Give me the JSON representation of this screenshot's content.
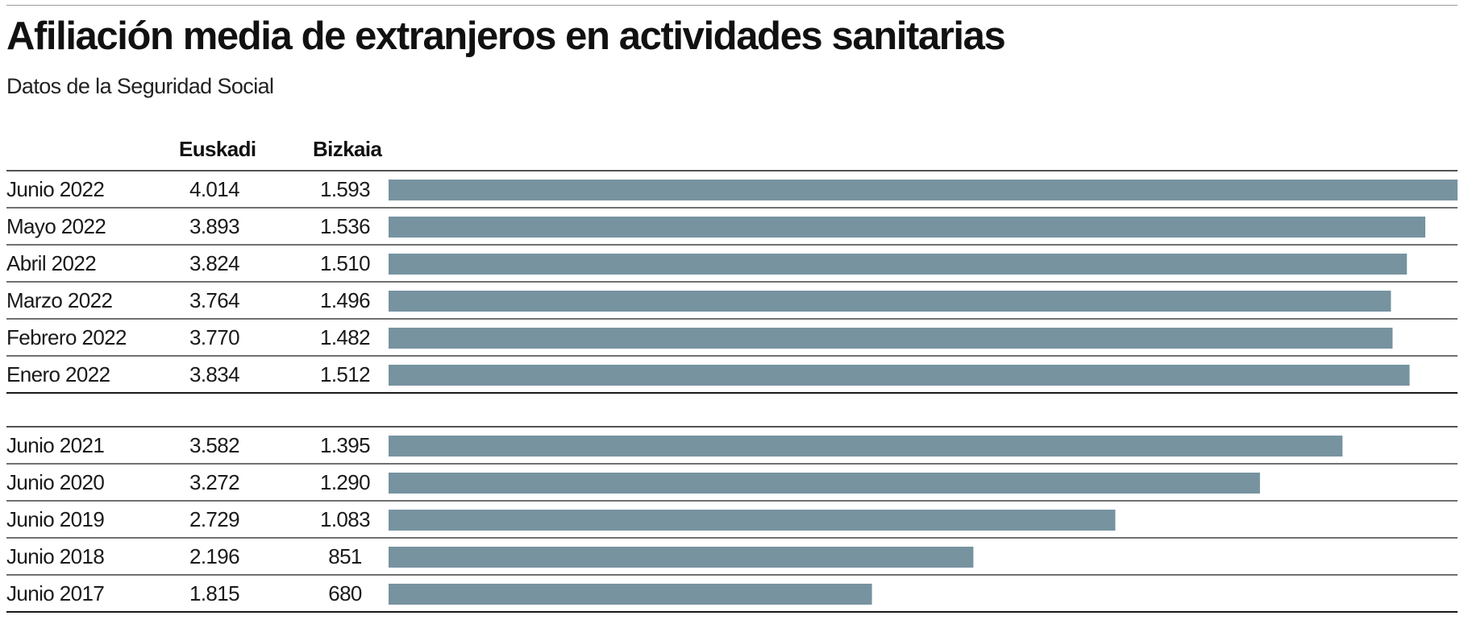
{
  "header": {
    "title": "Afiliación media de extranjeros en actividades sanitarias",
    "subtitle": "Datos de la Seguridad Social"
  },
  "columns": {
    "euskadi": "Euskadi",
    "bizkaia": "Bizkaia"
  },
  "colors": {
    "bar": "#7793a0",
    "rule": "#1a1a1a",
    "text": "#1a1a1a"
  },
  "chart_data": {
    "type": "bar",
    "orientation": "horizontal",
    "title": "Afiliación media de extranjeros en actividades sanitarias",
    "subtitle": "Datos de la Seguridad Social",
    "bar_series": "Euskadi",
    "xlim": [
      0,
      4014
    ],
    "groups": [
      {
        "rows": [
          {
            "label": "Junio 2022",
            "euskadi": 4014,
            "euskadi_text": "4.014",
            "bizkaia": 1593,
            "bizkaia_text": "1.593"
          },
          {
            "label": "Mayo 2022",
            "euskadi": 3893,
            "euskadi_text": "3.893",
            "bizkaia": 1536,
            "bizkaia_text": "1.536"
          },
          {
            "label": "Abril 2022",
            "euskadi": 3824,
            "euskadi_text": "3.824",
            "bizkaia": 1510,
            "bizkaia_text": "1.510"
          },
          {
            "label": "Marzo 2022",
            "euskadi": 3764,
            "euskadi_text": "3.764",
            "bizkaia": 1496,
            "bizkaia_text": "1.496"
          },
          {
            "label": "Febrero 2022",
            "euskadi": 3770,
            "euskadi_text": "3.770",
            "bizkaia": 1482,
            "bizkaia_text": "1.482"
          },
          {
            "label": "Enero 2022",
            "euskadi": 3834,
            "euskadi_text": "3.834",
            "bizkaia": 1512,
            "bizkaia_text": "1.512"
          }
        ]
      },
      {
        "rows": [
          {
            "label": "Junio 2021",
            "euskadi": 3582,
            "euskadi_text": "3.582",
            "bizkaia": 1395,
            "bizkaia_text": "1.395"
          },
          {
            "label": "Junio 2020",
            "euskadi": 3272,
            "euskadi_text": "3.272",
            "bizkaia": 1290,
            "bizkaia_text": "1.290"
          },
          {
            "label": "Junio 2019",
            "euskadi": 2729,
            "euskadi_text": "2.729",
            "bizkaia": 1083,
            "bizkaia_text": "1.083"
          },
          {
            "label": "Junio 2018",
            "euskadi": 2196,
            "euskadi_text": "2.196",
            "bizkaia": 851,
            "bizkaia_text": "851"
          },
          {
            "label": "Junio 2017",
            "euskadi": 1815,
            "euskadi_text": "1.815",
            "bizkaia": 680,
            "bizkaia_text": "680"
          }
        ]
      }
    ]
  }
}
